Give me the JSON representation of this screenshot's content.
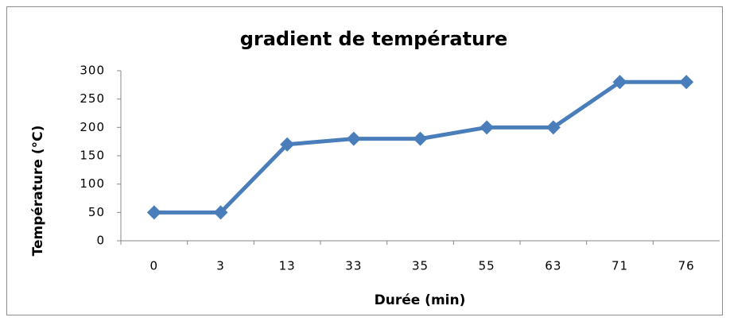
{
  "chart_data": {
    "type": "line",
    "title": "gradient de température",
    "x_label": "Durée (min)",
    "y_label": "Température (°C)",
    "categories": [
      "0",
      "3",
      "13",
      "33",
      "35",
      "55",
      "63",
      "71",
      "76"
    ],
    "series": [
      {
        "name": "Température",
        "color": "#4a7ebb",
        "values": [
          50,
          50,
          170,
          180,
          180,
          200,
          200,
          280,
          280
        ]
      }
    ],
    "ylim": [
      0,
      300
    ],
    "yticks": [
      0,
      50,
      100,
      150,
      200,
      250,
      300
    ],
    "grid": false
  }
}
